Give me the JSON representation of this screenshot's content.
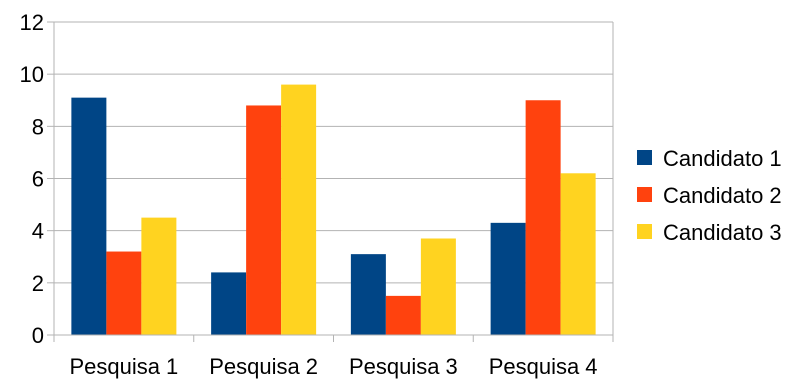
{
  "chart_data": {
    "type": "bar",
    "title": "",
    "xlabel": "",
    "ylabel": "",
    "categories": [
      "Pesquisa 1",
      "Pesquisa 2",
      "Pesquisa 3",
      "Pesquisa 4"
    ],
    "ylim": [
      0,
      12
    ],
    "yticks": [
      0,
      2,
      4,
      6,
      8,
      10,
      12
    ],
    "grid": true,
    "legend_position": "right",
    "series": [
      {
        "name": "Candidato 1",
        "color": "#004586",
        "values": [
          9.1,
          2.4,
          3.1,
          4.3
        ]
      },
      {
        "name": "Candidato 2",
        "color": "#ff420e",
        "values": [
          3.2,
          8.8,
          1.5,
          9.0
        ]
      },
      {
        "name": "Candidato 3",
        "color": "#ffd320",
        "values": [
          4.5,
          9.6,
          3.7,
          6.2
        ]
      }
    ]
  }
}
